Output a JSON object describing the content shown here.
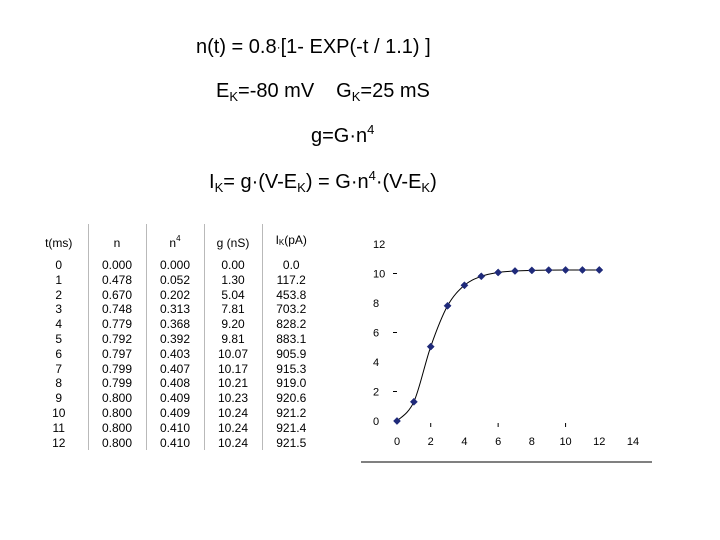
{
  "equations": {
    "line1": {
      "left": "n(t) = 0.8",
      "dot": "·",
      "right": "[1- EXP(-t / 1.1) ]"
    },
    "line2": {
      "ek_main": "E",
      "ek_sub": "K",
      "ek_value": "=-80 mV",
      "gk_main": "G",
      "gk_sub": "K",
      "gk_value": "=25 mS"
    },
    "line3": {
      "main": "g=G·n",
      "sup": "4"
    },
    "line4": {
      "p1": "I",
      "p1_sub": "K",
      "p2": "= g·(V-E",
      "p2_sub": "K",
      "p3": ") = G·n",
      "p3_sup": "4",
      "p4": "·(V-E",
      "p4_sub": "K",
      "p5": ")"
    }
  },
  "table": {
    "headers": {
      "t": "t(ms)",
      "n": "n",
      "n4_base": "n",
      "n4_sup": "4",
      "g": "g (nS)",
      "ik_base": "I",
      "ik_sub": "K",
      "ik_unit": "(pA)"
    },
    "rows": [
      [
        "0",
        "0.000",
        "0.000",
        "0.00",
        "0.0"
      ],
      [
        "1",
        "0.478",
        "0.052",
        "1.30",
        "117.2"
      ],
      [
        "2",
        "0.670",
        "0.202",
        "5.04",
        "453.8"
      ],
      [
        "3",
        "0.748",
        "0.313",
        "7.81",
        "703.2"
      ],
      [
        "4",
        "0.779",
        "0.368",
        "9.20",
        "828.2"
      ],
      [
        "5",
        "0.792",
        "0.392",
        "9.81",
        "883.1"
      ],
      [
        "6",
        "0.797",
        "0.403",
        "10.07",
        "905.9"
      ],
      [
        "7",
        "0.799",
        "0.407",
        "10.17",
        "915.3"
      ],
      [
        "8",
        "0.799",
        "0.408",
        "10.21",
        "919.0"
      ],
      [
        "9",
        "0.800",
        "0.409",
        "10.23",
        "920.6"
      ],
      [
        "10",
        "0.800",
        "0.409",
        "10.24",
        "921.2"
      ],
      [
        "11",
        "0.800",
        "0.410",
        "10.24",
        "921.4"
      ],
      [
        "12",
        "0.800",
        "0.410",
        "10.24",
        "921.5"
      ]
    ]
  },
  "chart_data": {
    "type": "line",
    "x": [
      0,
      1,
      2,
      3,
      4,
      5,
      6,
      7,
      8,
      9,
      10,
      11,
      12
    ],
    "series": [
      {
        "values": [
          0.0,
          1.3,
          5.04,
          7.81,
          9.2,
          9.81,
          10.07,
          10.17,
          10.21,
          10.23,
          10.24,
          10.24,
          10.24
        ],
        "color": "#1f2a7a"
      }
    ],
    "xlim": [
      0,
      14
    ],
    "ylim": [
      0,
      12
    ],
    "xticks": [
      "0",
      "2",
      "4",
      "6",
      "8",
      "10",
      "12",
      "14"
    ],
    "yticks": [
      "0",
      "2",
      "4",
      "6",
      "8",
      "10",
      "12"
    ],
    "title": "",
    "xlabel": "",
    "ylabel": "",
    "grid": false,
    "marker": "diamond"
  }
}
